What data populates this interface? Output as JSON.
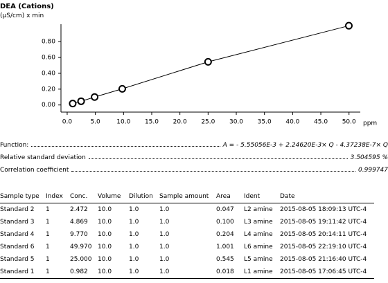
{
  "title": "DEA (Cations)",
  "chart_data": {
    "type": "line",
    "y_label": "(µS/cm) x min",
    "x_label": "ppm",
    "x": [
      0.982,
      2.472,
      4.869,
      9.77,
      25.0,
      49.97
    ],
    "values": [
      0.018,
      0.047,
      0.1,
      0.204,
      0.545,
      1.001
    ],
    "color": "#000000",
    "xlim": [
      -1.1,
      52
    ],
    "xticks": [
      {
        "value": 0,
        "label": "0.0"
      },
      {
        "value": 5,
        "label": "5.0"
      },
      {
        "value": 10,
        "label": "10.0"
      },
      {
        "value": 15,
        "label": "15.0"
      },
      {
        "value": 20,
        "label": "20.0"
      },
      {
        "value": 25,
        "label": "25.0"
      },
      {
        "value": 30,
        "label": "30.0"
      },
      {
        "value": 35,
        "label": "35.0"
      },
      {
        "value": 40,
        "label": "40.0"
      },
      {
        "value": 45,
        "label": "45.0"
      },
      {
        "value": 50,
        "label": "50.0"
      }
    ],
    "ylim": [
      -0.09,
      1.02
    ],
    "yticks": [
      {
        "value": 0,
        "label": "0.00"
      },
      {
        "value": 0.2,
        "label": "0.20"
      },
      {
        "value": 0.4,
        "label": "0.40"
      },
      {
        "value": 0.6,
        "label": "0.60"
      },
      {
        "value": 0.8,
        "label": "0.80"
      }
    ]
  },
  "statistics": [
    {
      "label": "Function:",
      "value": "A = - 5.55056E-3 + 2.24620E-3× Q - 4.37238E-7× Q"
    },
    {
      "label": "Relative standard deviation",
      "value": "3.504595 %"
    },
    {
      "label": "Correlation coefficient",
      "value": "0.999747"
    }
  ],
  "table": {
    "columns": [
      "Sample type",
      "Index",
      "Conc.",
      "Volume",
      "Dilution",
      "Sample amount",
      "Area",
      "Ident",
      "Date"
    ],
    "rows": [
      [
        "Standard 2",
        "1",
        "2.472",
        "10.0",
        "1.0",
        "1.0",
        "0.047",
        "L2 amine",
        "2015-08-05 18:09:13 UTC-4"
      ],
      [
        "Standard 3",
        "1",
        "4.869",
        "10.0",
        "1.0",
        "1.0",
        "0.100",
        "L3 amine",
        "2015-08-05 19:11:42 UTC-4"
      ],
      [
        "Standard 4",
        "1",
        "9.770",
        "10.0",
        "1.0",
        "1.0",
        "0.204",
        "L4 amine",
        "2015-08-05 20:14:11 UTC-4"
      ],
      [
        "Standard 6",
        "1",
        "49.970",
        "10.0",
        "1.0",
        "1.0",
        "1.001",
        "L6 amine",
        "2015-08-05 22:19:10 UTC-4"
      ],
      [
        "Standard 5",
        "1",
        "25.000",
        "10.0",
        "1.0",
        "1.0",
        "0.545",
        "L5 amine",
        "2015-08-05 21:16:40 UTC-4"
      ],
      [
        "Standard 1",
        "1",
        "0.982",
        "10.0",
        "1.0",
        "1.0",
        "0.018",
        "L1 amine",
        "2015-08-05 17:06:45 UTC-4"
      ]
    ]
  }
}
